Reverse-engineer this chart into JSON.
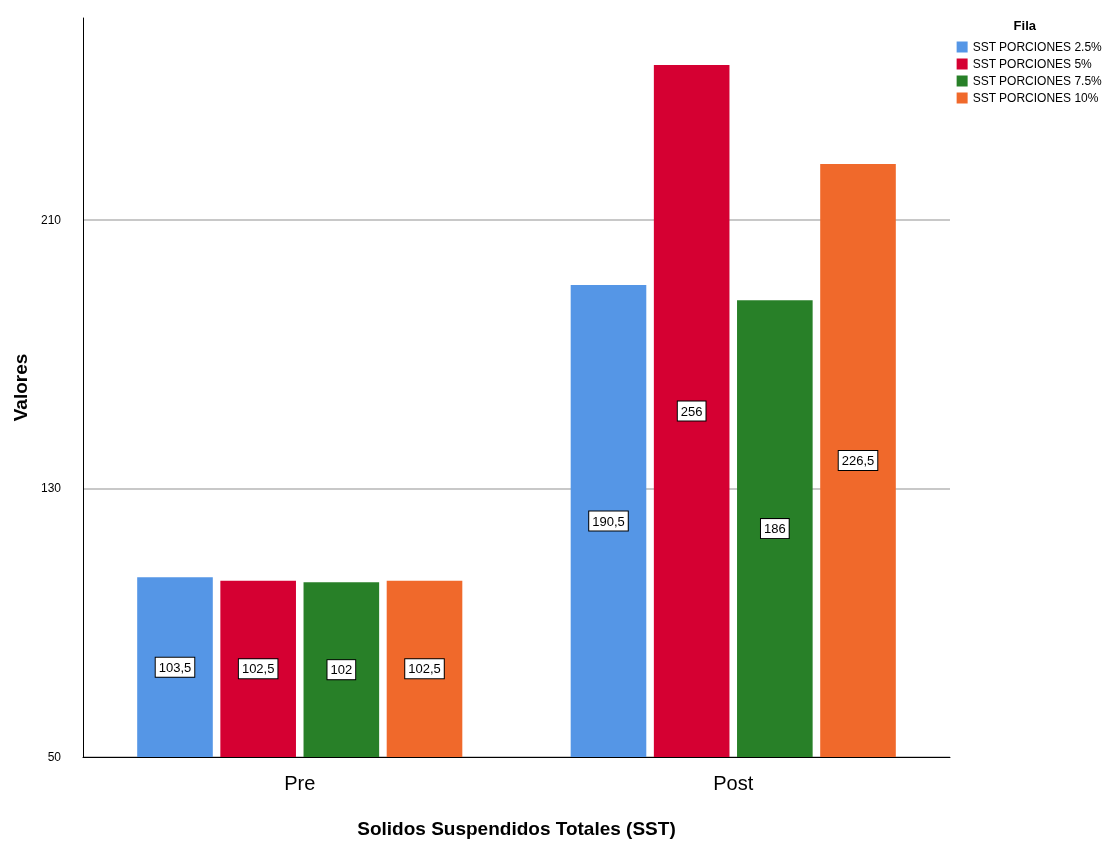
{
  "chart_data": {
    "type": "bar",
    "xlabel": "Solidos Suspendidos Totales (SST)",
    "ylabel": "Valores",
    "legend_title": "Fila",
    "categories": [
      "Pre",
      "Post"
    ],
    "series": [
      {
        "name": "SST PORCIONES 2.5%",
        "color": "#5596e6",
        "values": [
          103.5,
          190.5
        ],
        "value_labels": [
          "103,5",
          "190,5"
        ]
      },
      {
        "name": "SST PORCIONES 5%",
        "color": "#d50032",
        "values": [
          102.5,
          256
        ],
        "value_labels": [
          "102,5",
          "256"
        ]
      },
      {
        "name": "SST PORCIONES 7.5%",
        "color": "#288028",
        "values": [
          102,
          186
        ],
        "value_labels": [
          "102",
          "186"
        ]
      },
      {
        "name": "SST PORCIONES 10%",
        "color": "#f0692b",
        "values": [
          102.5,
          226.5
        ],
        "value_labels": [
          "102,5",
          "226,5"
        ]
      }
    ],
    "ylim": [
      50,
      270
    ],
    "yticks": [
      50,
      130,
      210
    ],
    "grid": "y",
    "legend": "top right"
  }
}
